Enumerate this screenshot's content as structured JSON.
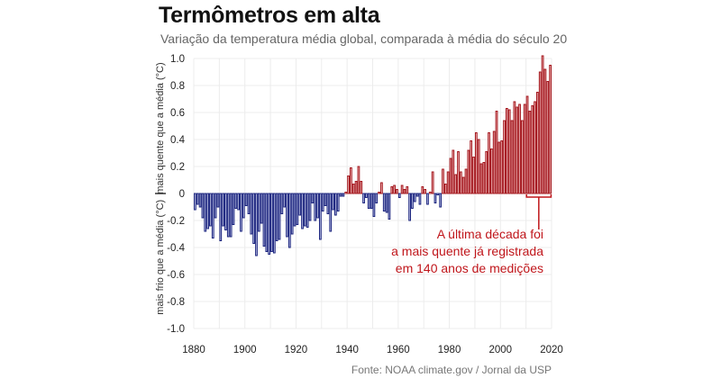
{
  "header": {
    "title": "Termômetros em alta",
    "subtitle": "Variação da temperatura média global, comparada à média do século 20"
  },
  "source": "Fonte:  NOAA climate.gov / Jornal da USP",
  "colors": {
    "warm": "#a3141b",
    "warm_fill": "#f4c4c4",
    "cold": "#1a237e",
    "cold_fill": "#c5cae9",
    "annotation": "#c0161b",
    "grid": "#ececec"
  },
  "chart_data": {
    "type": "bar",
    "title": "Termômetros em alta",
    "subtitle": "Variação da temperatura média global, comparada à média do século 20",
    "xlabel": "",
    "ylabel_positive": "mais quente que a média (°C)",
    "ylabel_negative": "mais frio que a média (°C)",
    "ylim": [
      -1.0,
      1.0
    ],
    "xlim": [
      1880,
      2020
    ],
    "yticks": [
      "1.0",
      "0.8",
      "0.6",
      "0.4",
      "0.2",
      "0",
      "-0.2",
      "-0.4",
      "-0.6",
      "-0.8",
      "-1.0"
    ],
    "ytick_values": [
      1.0,
      0.8,
      0.6,
      0.4,
      0.2,
      0,
      -0.2,
      -0.4,
      -0.6,
      -0.8,
      -1.0
    ],
    "xticks": [
      "1880",
      "1900",
      "1920",
      "1940",
      "1960",
      "1980",
      "2000",
      "2020"
    ],
    "xtick_values": [
      1880,
      1900,
      1920,
      1940,
      1960,
      1980,
      2000,
      2020
    ],
    "grid": true,
    "x_start": 1880,
    "values": [
      -0.12,
      -0.08,
      -0.1,
      -0.18,
      -0.28,
      -0.26,
      -0.24,
      -0.33,
      -0.18,
      -0.1,
      -0.35,
      -0.24,
      -0.27,
      -0.32,
      -0.32,
      -0.23,
      -0.11,
      -0.12,
      -0.28,
      -0.18,
      -0.09,
      -0.15,
      -0.3,
      -0.37,
      -0.46,
      -0.28,
      -0.22,
      -0.39,
      -0.43,
      -0.45,
      -0.43,
      -0.44,
      -0.35,
      -0.34,
      -0.15,
      -0.1,
      -0.32,
      -0.4,
      -0.3,
      -0.24,
      -0.23,
      -0.16,
      -0.26,
      -0.24,
      -0.25,
      -0.2,
      -0.07,
      -0.2,
      -0.18,
      -0.34,
      -0.13,
      -0.09,
      -0.15,
      -0.28,
      -0.12,
      -0.16,
      -0.13,
      -0.02,
      -0.02,
      0.01,
      0.13,
      0.19,
      0.07,
      0.09,
      0.2,
      0.09,
      -0.07,
      -0.03,
      -0.11,
      -0.11,
      -0.17,
      -0.07,
      0.01,
      0.08,
      -0.13,
      -0.14,
      -0.19,
      0.05,
      0.06,
      0.03,
      -0.03,
      0.06,
      0.03,
      0.05,
      -0.2,
      -0.11,
      -0.06,
      -0.02,
      -0.08,
      0.05,
      0.03,
      -0.08,
      0.01,
      0.16,
      -0.07,
      -0.01,
      -0.1,
      0.18,
      0.07,
      0.16,
      0.26,
      0.32,
      0.14,
      0.31,
      0.16,
      0.12,
      0.18,
      0.32,
      0.39,
      0.27,
      0.45,
      0.4,
      0.22,
      0.23,
      0.31,
      0.45,
      0.33,
      0.46,
      0.61,
      0.38,
      0.39,
      0.54,
      0.63,
      0.62,
      0.54,
      0.68,
      0.64,
      0.66,
      0.54,
      0.66,
      0.72,
      0.61,
      0.65,
      0.68,
      0.75,
      0.9,
      1.02,
      0.92,
      0.83,
      0.95
    ],
    "annotation": {
      "lines": [
        "A última década foi",
        "a mais quente já registrada",
        "em 140 anos de medições"
      ],
      "bracket_years": [
        2010,
        2019
      ]
    }
  }
}
